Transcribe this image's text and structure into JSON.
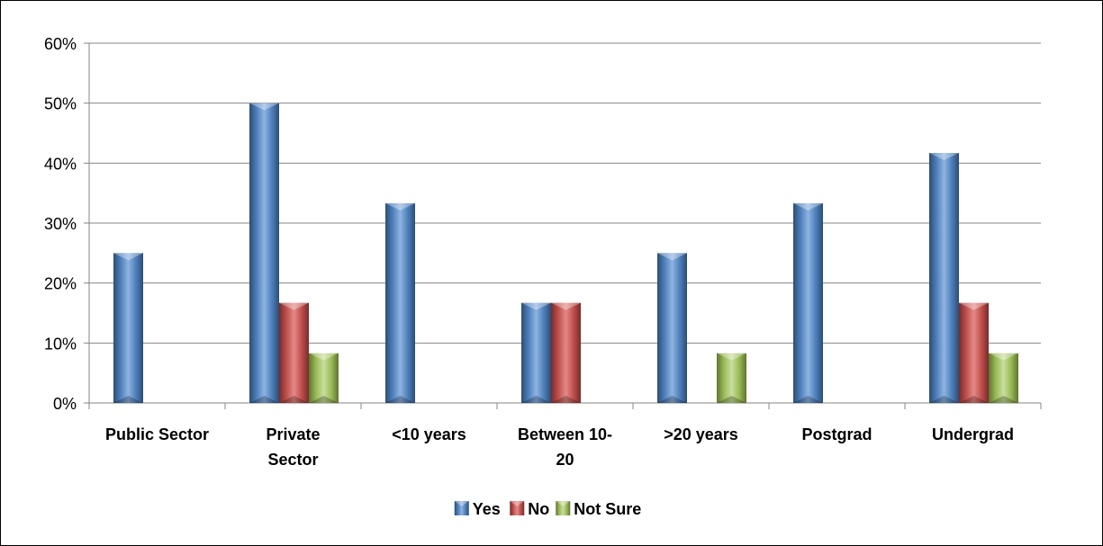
{
  "chart_data": {
    "type": "bar",
    "categories": [
      [
        "Public Sector"
      ],
      [
        "Private",
        "Sector"
      ],
      [
        "<10 years"
      ],
      [
        "Between 10-",
        "20"
      ],
      [
        ">20 years"
      ],
      [
        "Postgrad"
      ],
      [
        "Undergrad"
      ]
    ],
    "series": [
      {
        "name": "Yes",
        "color": "#4f81bd",
        "values": [
          25,
          50,
          33.3,
          16.7,
          25,
          33.3,
          41.7
        ]
      },
      {
        "name": "No",
        "color": "#c0504d",
        "values": [
          0,
          16.7,
          0,
          16.7,
          0,
          0,
          16.7
        ]
      },
      {
        "name": "Not Sure",
        "color": "#9bbb59",
        "values": [
          0,
          8.3,
          0,
          0,
          8.3,
          0,
          8.3
        ]
      }
    ],
    "y_ticks": [
      "0%",
      "10%",
      "20%",
      "30%",
      "40%",
      "50%",
      "60%"
    ],
    "ylim": [
      0,
      60
    ],
    "grid": true,
    "legend_position": "bottom"
  }
}
